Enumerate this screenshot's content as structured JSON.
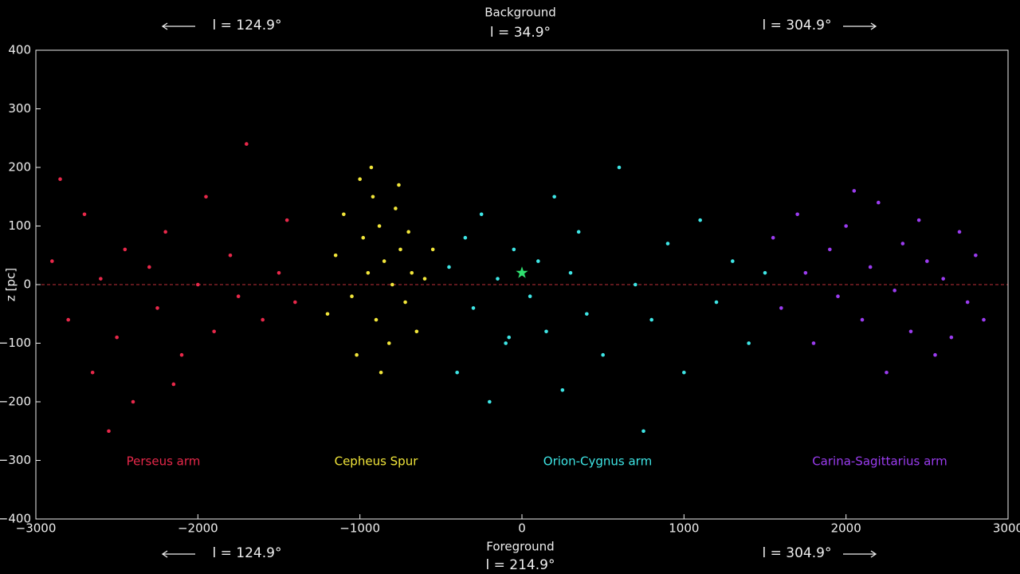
{
  "chart_data": {
    "type": "scatter",
    "y_label": "z [pc]",
    "annotations": {
      "top_center": "Background",
      "top_center_l": "l = 34.9°",
      "top_left": "l = 124.9°",
      "top_right": "l = 304.9°",
      "bottom_center": "Foreground",
      "bottom_center_l": "l = 214.9°",
      "bottom_left": "l = 124.9°",
      "bottom_right": "l = 304.9°"
    },
    "xlim": [
      -3000,
      3000
    ],
    "ylim": [
      -400,
      400
    ],
    "xticks": [
      {
        "value": -3000,
        "label": "−3000"
      },
      {
        "value": -2000,
        "label": "−2000"
      },
      {
        "value": -1000,
        "label": "−1000"
      },
      0,
      1000,
      2000,
      3000
    ],
    "yticks": [
      {
        "value": -400,
        "label": "−400"
      },
      {
        "value": -300,
        "label": "−300"
      },
      {
        "value": -200,
        "label": "−200"
      },
      {
        "value": -100,
        "label": "−100"
      },
      0,
      100,
      200,
      300,
      400
    ],
    "reference_line": {
      "y": 0,
      "color": "#c0303a"
    },
    "marker": {
      "x": 0,
      "y": 20,
      "color": "#30e070"
    },
    "series": [
      {
        "name": "Perseus arm",
        "color": "#e8284a",
        "x": [
          -2900,
          -2800,
          -2700,
          -2650,
          -2600,
          -2500,
          -2450,
          -2400,
          -2300,
          -2250,
          -2200,
          -2100,
          -2000,
          -1950,
          -1900,
          -1800,
          -1750,
          -1700,
          -1600,
          -1500,
          -1450,
          -1400,
          -2550,
          -2850,
          -2150
        ],
        "values": [
          40,
          -60,
          120,
          -150,
          10,
          -90,
          60,
          -200,
          30,
          -40,
          90,
          -120,
          0,
          150,
          -80,
          50,
          -20,
          240,
          -60,
          20,
          110,
          -30,
          -250,
          180,
          -170
        ]
      },
      {
        "name": "Cepheus Spur",
        "color": "#f2e63a",
        "x": [
          -1150,
          -1100,
          -1050,
          -1000,
          -980,
          -950,
          -920,
          -900,
          -880,
          -850,
          -820,
          -800,
          -780,
          -750,
          -720,
          -700,
          -680,
          -650,
          -600,
          -550,
          -1020,
          -870,
          -930,
          -760,
          -1200
        ],
        "values": [
          50,
          120,
          -20,
          180,
          80,
          20,
          150,
          -60,
          100,
          40,
          -100,
          0,
          130,
          60,
          -30,
          90,
          20,
          -80,
          10,
          60,
          -120,
          -150,
          200,
          170,
          -50
        ]
      },
      {
        "name": "Orion-Cygnus arm",
        "color": "#3ee6e6",
        "x": [
          -450,
          -400,
          -350,
          -300,
          -250,
          -200,
          -150,
          -100,
          -50,
          50,
          100,
          150,
          200,
          250,
          300,
          350,
          400,
          500,
          600,
          700,
          800,
          900,
          1000,
          1100,
          1200,
          1300,
          1400,
          1500,
          -80,
          750
        ],
        "values": [
          30,
          -150,
          80,
          -40,
          120,
          -200,
          10,
          -100,
          60,
          -20,
          40,
          -80,
          150,
          -180,
          20,
          90,
          -50,
          -120,
          200,
          0,
          -60,
          70,
          -150,
          110,
          -30,
          40,
          -100,
          20,
          -90,
          -250
        ]
      },
      {
        "name": "Carina-Sagittarius arm",
        "color": "#9b3cf0",
        "x": [
          1550,
          1600,
          1700,
          1750,
          1800,
          1900,
          1950,
          2000,
          2100,
          2150,
          2200,
          2300,
          2350,
          2400,
          2500,
          2550,
          2600,
          2700,
          2750,
          2800,
          2850,
          2250,
          2050,
          2450,
          2650
        ],
        "values": [
          80,
          -40,
          120,
          20,
          -100,
          60,
          -20,
          100,
          -60,
          30,
          140,
          -10,
          70,
          -80,
          40,
          -120,
          10,
          90,
          -30,
          50,
          -60,
          -150,
          160,
          110,
          -90
        ]
      }
    ]
  }
}
